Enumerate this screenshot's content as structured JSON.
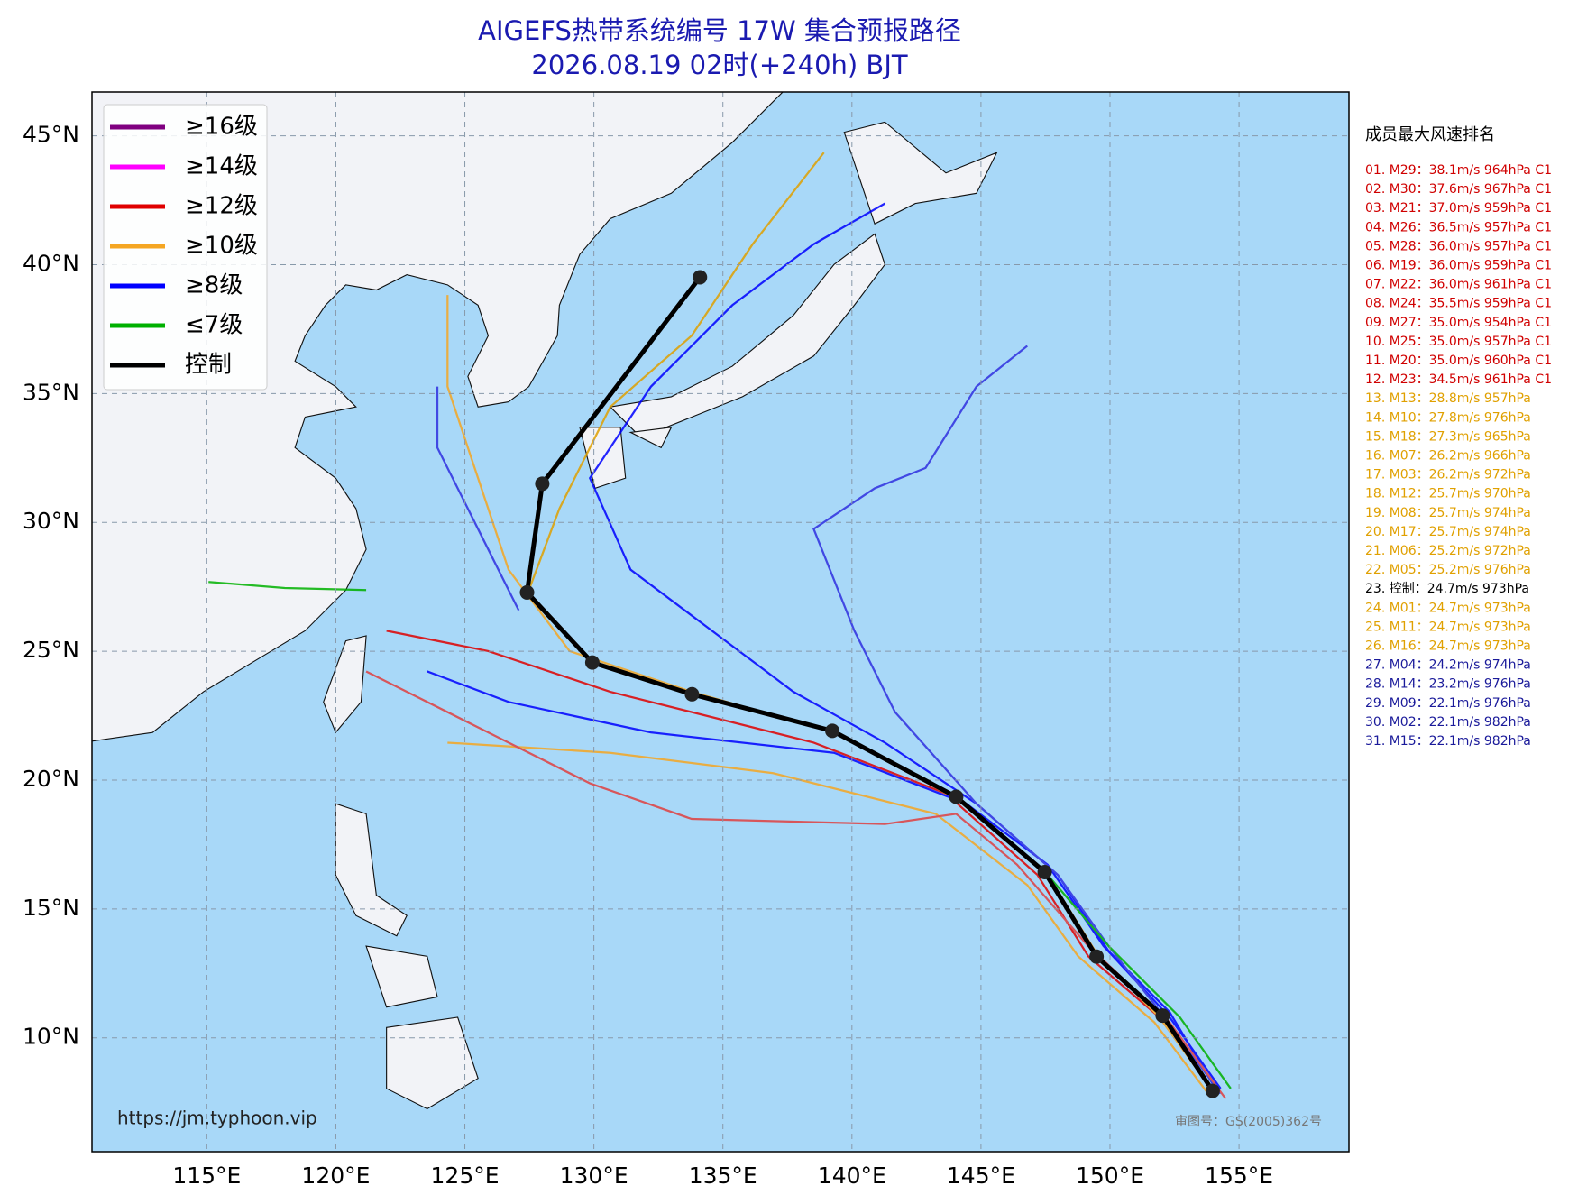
{
  "header": {
    "title": "AIGEFS热带系统编号 17W 集合预报路径",
    "subtitle": "2026.08.19 02时(+240h) BJT"
  },
  "map": {
    "xlim": [
      110.55,
      159.26
    ],
    "ylim": [
      5.58,
      46.7
    ],
    "xticks": [
      {
        "value": 115,
        "label": "115°E"
      },
      {
        "value": 120,
        "label": "120°E"
      },
      {
        "value": 125,
        "label": "125°E"
      },
      {
        "value": 130,
        "label": "130°E"
      },
      {
        "value": 135,
        "label": "135°E"
      },
      {
        "value": 140,
        "label": "140°E"
      },
      {
        "value": 145,
        "label": "145°E"
      },
      {
        "value": 150,
        "label": "150°E"
      },
      {
        "value": 155,
        "label": "155°E"
      }
    ],
    "yticks": [
      {
        "value": 10,
        "label": "10°N"
      },
      {
        "value": 15,
        "label": "15°N"
      },
      {
        "value": 20,
        "label": "20°N"
      },
      {
        "value": 25,
        "label": "25°N"
      },
      {
        "value": 30,
        "label": "30°N"
      },
      {
        "value": 35,
        "label": "35°N"
      },
      {
        "value": 40,
        "label": "40°N"
      },
      {
        "value": 45,
        "label": "45°N"
      }
    ],
    "grid": true,
    "control": {
      "color": "#000000",
      "lon": [
        153.98,
        152.04,
        149.48,
        147.47,
        144.04,
        139.24,
        133.8,
        129.94,
        127.41,
        128.0,
        134.11
      ],
      "lat": [
        7.94,
        10.86,
        13.15,
        16.43,
        19.35,
        21.91,
        23.33,
        24.56,
        27.28,
        31.5,
        39.51
      ]
    }
  },
  "legend": [
    {
      "name": "≥16级",
      "color": "#800080"
    },
    {
      "name": "≥14级",
      "color": "#ff00ff"
    },
    {
      "name": "≥12级",
      "color": "#e00000"
    },
    {
      "name": "≥10级",
      "color": "#f5a623"
    },
    {
      "name": "≥8级",
      "color": "#0000ff"
    },
    {
      "name": "≤7级",
      "color": "#00b000"
    },
    {
      "name": "控制",
      "color": "#000000"
    }
  ],
  "ranking": {
    "title": "成员最大风速排名",
    "items": [
      {
        "text": "01. M29：38.1m/s 964hPa C1",
        "color": "#d00000"
      },
      {
        "text": "02. M30：37.6m/s 967hPa C1",
        "color": "#d00000"
      },
      {
        "text": "03. M21：37.0m/s 959hPa C1",
        "color": "#d00000"
      },
      {
        "text": "04. M26：36.5m/s 957hPa C1",
        "color": "#d00000"
      },
      {
        "text": "05. M28：36.0m/s 957hPa C1",
        "color": "#d00000"
      },
      {
        "text": "06. M19：36.0m/s 959hPa C1",
        "color": "#d00000"
      },
      {
        "text": "07. M22：36.0m/s 961hPa C1",
        "color": "#d00000"
      },
      {
        "text": "08. M24：35.5m/s 959hPa C1",
        "color": "#d00000"
      },
      {
        "text": "09. M27：35.0m/s 954hPa C1",
        "color": "#d00000"
      },
      {
        "text": "10. M25：35.0m/s 957hPa C1",
        "color": "#d00000"
      },
      {
        "text": "11. M20：35.0m/s 960hPa C1",
        "color": "#d00000"
      },
      {
        "text": "12. M23：34.5m/s 961hPa C1",
        "color": "#d00000"
      },
      {
        "text": "13. M13：28.8m/s 957hPa",
        "color": "#e0a000"
      },
      {
        "text": "14. M10：27.8m/s 976hPa",
        "color": "#e0a000"
      },
      {
        "text": "15. M18：27.3m/s 965hPa",
        "color": "#e0a000"
      },
      {
        "text": "16. M07：26.2m/s 966hPa",
        "color": "#e0a000"
      },
      {
        "text": "17. M03：26.2m/s 972hPa",
        "color": "#e0a000"
      },
      {
        "text": "18. M12：25.7m/s 970hPa",
        "color": "#e0a000"
      },
      {
        "text": "19. M08：25.7m/s 974hPa",
        "color": "#e0a000"
      },
      {
        "text": "20. M17：25.7m/s 974hPa",
        "color": "#e0a000"
      },
      {
        "text": "21. M06：25.2m/s 972hPa",
        "color": "#e0a000"
      },
      {
        "text": "22. M05：25.2m/s 976hPa",
        "color": "#e0a000"
      },
      {
        "text": "23. 控制：24.7m/s 973hPa",
        "color": "#000000"
      },
      {
        "text": "24. M01：24.7m/s 973hPa",
        "color": "#e0a000"
      },
      {
        "text": "25. M11：24.7m/s 973hPa",
        "color": "#e0a000"
      },
      {
        "text": "26. M16：24.7m/s 973hPa",
        "color": "#e0a000"
      },
      {
        "text": "27. M04：24.2m/s 974hPa",
        "color": "#1a1a9a"
      },
      {
        "text": "28. M14：23.2m/s 976hPa",
        "color": "#1a1a9a"
      },
      {
        "text": "29. M09：22.1m/s 976hPa",
        "color": "#1a1a9a"
      },
      {
        "text": "30. M02：22.1m/s 982hPa",
        "color": "#1a1a9a"
      },
      {
        "text": "31. M15：22.1m/s 982hPa",
        "color": "#1a1a9a"
      }
    ]
  },
  "footer": {
    "url": "https://jm.typhoon.vip",
    "approval": "审图号：GS(2005)362号"
  }
}
